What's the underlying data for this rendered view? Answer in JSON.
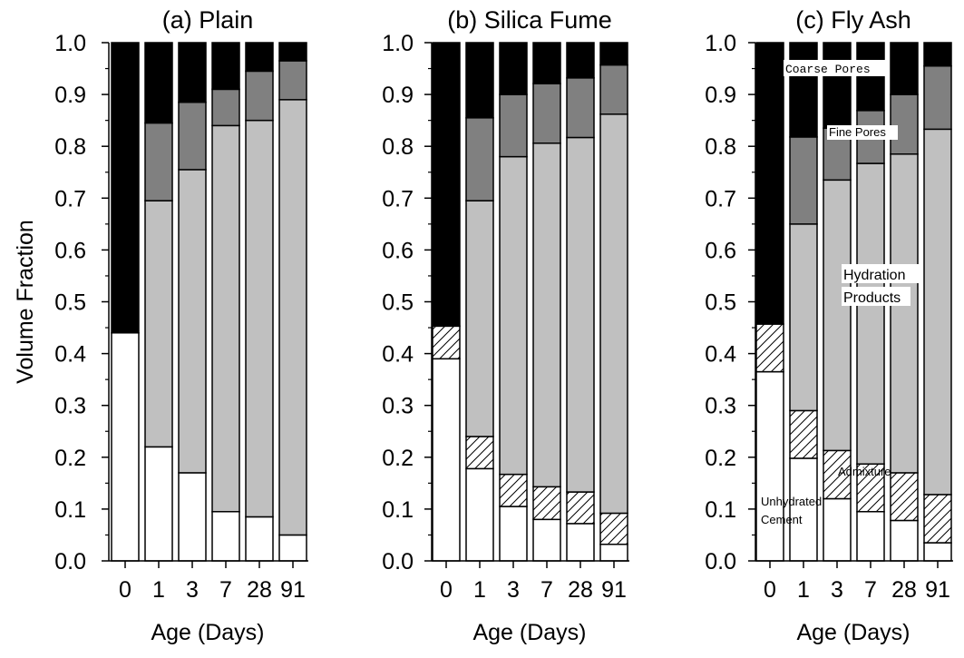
{
  "chart_data": [
    {
      "type": "bar",
      "stacked": true,
      "title": "(a) Plain",
      "xlabel": "Age (Days)",
      "ylabel": "Volume Fraction",
      "ylim": [
        0,
        1
      ],
      "yticks": [
        "0.0",
        "0.1",
        "0.2",
        "0.3",
        "0.4",
        "0.5",
        "0.6",
        "0.7",
        "0.8",
        "0.9",
        "1.0"
      ],
      "categories": [
        "0",
        "1",
        "3",
        "7",
        "28",
        "91"
      ],
      "series": [
        {
          "key": "unhydrated",
          "values": [
            0.44,
            0.22,
            0.17,
            0.095,
            0.085,
            0.05
          ]
        },
        {
          "key": "admixture",
          "values": [
            0,
            0,
            0,
            0,
            0,
            0
          ]
        },
        {
          "key": "hydration",
          "values": [
            0,
            0.475,
            0.585,
            0.745,
            0.765,
            0.84
          ]
        },
        {
          "key": "fine",
          "values": [
            0,
            0.15,
            0.13,
            0.07,
            0.095,
            0.075
          ]
        },
        {
          "key": "coarse",
          "values": [
            0.56,
            0.155,
            0.115,
            0.09,
            0.055,
            0.035
          ]
        }
      ],
      "annotations": []
    },
    {
      "type": "bar",
      "stacked": true,
      "title": "(b) Silica Fume",
      "xlabel": "Age (Days)",
      "ylabel": "",
      "ylim": [
        0,
        1
      ],
      "yticks": [
        "0.0",
        "0.1",
        "0.2",
        "0.3",
        "0.4",
        "0.5",
        "0.6",
        "0.7",
        "0.8",
        "0.9",
        "1.0"
      ],
      "categories": [
        "0",
        "1",
        "3",
        "7",
        "28",
        "91"
      ],
      "series": [
        {
          "key": "unhydrated",
          "values": [
            0.39,
            0.178,
            0.105,
            0.08,
            0.072,
            0.032
          ]
        },
        {
          "key": "admixture",
          "values": [
            0.063,
            0.062,
            0.062,
            0.063,
            0.061,
            0.06
          ]
        },
        {
          "key": "hydration",
          "values": [
            0,
            0.455,
            0.613,
            0.663,
            0.684,
            0.77
          ]
        },
        {
          "key": "fine",
          "values": [
            0,
            0.16,
            0.12,
            0.115,
            0.115,
            0.095
          ]
        },
        {
          "key": "coarse",
          "values": [
            0.547,
            0.145,
            0.1,
            0.079,
            0.068,
            0.043
          ]
        }
      ],
      "annotations": []
    },
    {
      "type": "bar",
      "stacked": true,
      "title": "(c) Fly Ash",
      "xlabel": "Age (Days)",
      "ylabel": "",
      "ylim": [
        0,
        1
      ],
      "yticks": [
        "0.0",
        "0.1",
        "0.2",
        "0.3",
        "0.4",
        "0.5",
        "0.6",
        "0.7",
        "0.8",
        "0.9",
        "1.0"
      ],
      "categories": [
        "0",
        "1",
        "3",
        "7",
        "28",
        "91"
      ],
      "series": [
        {
          "key": "unhydrated",
          "values": [
            0.365,
            0.198,
            0.12,
            0.095,
            0.078,
            0.035
          ]
        },
        {
          "key": "admixture",
          "values": [
            0.092,
            0.092,
            0.093,
            0.092,
            0.092,
            0.093
          ]
        },
        {
          "key": "hydration",
          "values": [
            0,
            0.36,
            0.522,
            0.58,
            0.615,
            0.705
          ]
        },
        {
          "key": "fine",
          "values": [
            0,
            0.168,
            0.1,
            0.102,
            0.115,
            0.122
          ]
        },
        {
          "key": "coarse",
          "values": [
            0.543,
            0.182,
            0.165,
            0.131,
            0.1,
            0.045
          ]
        }
      ],
      "annotations": [
        {
          "text": "Coarse Pores",
          "style": "mono"
        },
        {
          "text": "Fine Pores",
          "style": "small"
        },
        {
          "text": "Hydration",
          "style": "big"
        },
        {
          "text": "Products",
          "style": "big"
        },
        {
          "text": "Admixture",
          "style": "small"
        },
        {
          "text": "Unhydrated",
          "style": "small"
        },
        {
          "text": "Cement",
          "style": "small"
        }
      ]
    }
  ],
  "colors": {
    "unhydrated": "#ffffff",
    "admixture": "hatch",
    "hydration": "#c0c0c0",
    "fine": "#808080",
    "coarse": "#000000"
  }
}
